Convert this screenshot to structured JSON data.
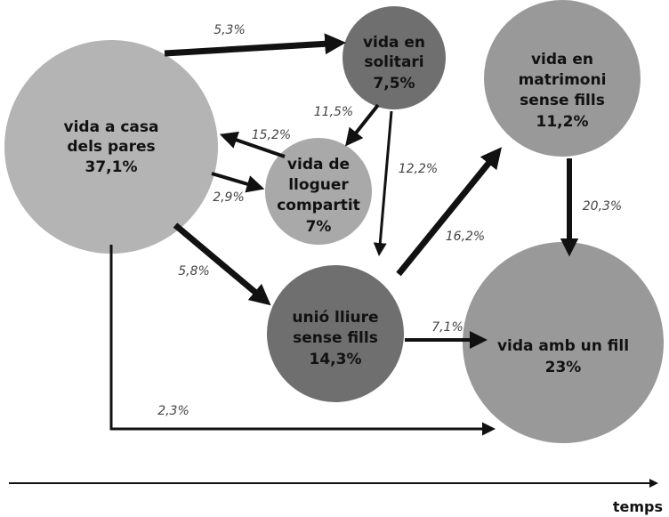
{
  "nodes": [
    {
      "lines": [
        "vida a casa",
        "dels pares"
      ],
      "share": "37,1%"
    },
    {
      "lines": [
        "vida en",
        "solitari"
      ],
      "share": "7,5%"
    },
    {
      "lines": [
        "vida en",
        "matrimoni",
        "sense fills"
      ],
      "share": "11,2%"
    },
    {
      "lines": [
        "vida de",
        "lloguer",
        "compartit"
      ],
      "share": "7%"
    },
    {
      "lines": [
        "unió lliure",
        "sense fills"
      ],
      "share": "14,3%"
    },
    {
      "lines": [
        "vida amb un fill"
      ],
      "share": "23%"
    }
  ],
  "edges": [
    {
      "label": "5,3%"
    },
    {
      "label": "11,5%"
    },
    {
      "label": "15,2%"
    },
    {
      "label": "2,9%"
    },
    {
      "label": "12,2%"
    },
    {
      "label": "5,8%"
    },
    {
      "label": "16,2%"
    },
    {
      "label": "20,3%"
    },
    {
      "label": "7,1%"
    },
    {
      "label": "2,3%"
    }
  ],
  "axis": {
    "label": "temps"
  }
}
